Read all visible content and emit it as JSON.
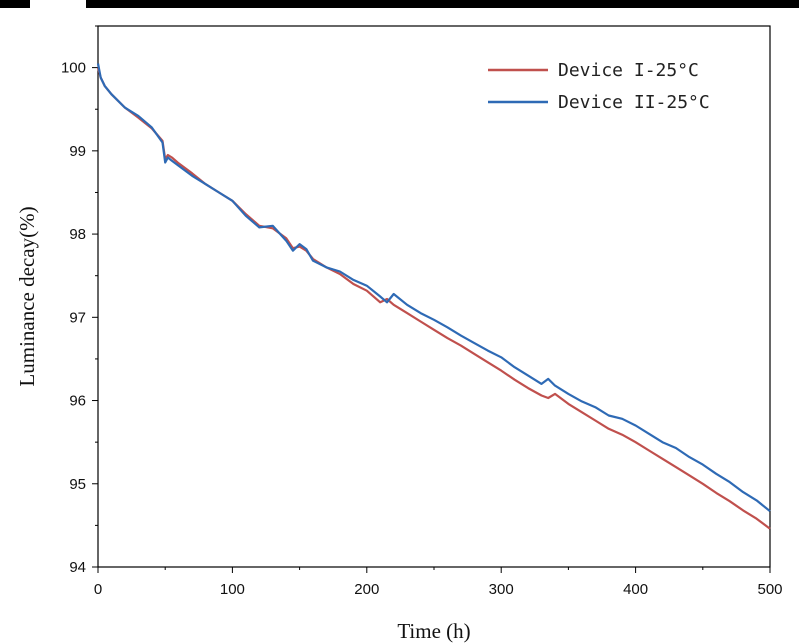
{
  "chart_data": {
    "type": "line",
    "title": "",
    "xlabel": "Time (h)",
    "ylabel": "Luminance decay(%)",
    "xlim": [
      0,
      500
    ],
    "ylim": [
      94,
      100.5
    ],
    "xticks": [
      0,
      100,
      200,
      300,
      400,
      500
    ],
    "yticks": [
      94,
      95,
      96,
      97,
      98,
      99,
      100
    ],
    "grid": false,
    "legend_position": "top-right",
    "series": [
      {
        "name": "Device I-25°C",
        "color": "#c0504d",
        "x": [
          0,
          2,
          5,
          10,
          20,
          30,
          40,
          48,
          50,
          52,
          55,
          60,
          70,
          80,
          90,
          100,
          110,
          120,
          130,
          140,
          145,
          150,
          155,
          160,
          170,
          180,
          190,
          200,
          210,
          215,
          220,
          230,
          240,
          250,
          260,
          270,
          280,
          290,
          300,
          310,
          320,
          330,
          335,
          340,
          350,
          360,
          370,
          380,
          390,
          400,
          410,
          420,
          430,
          440,
          450,
          460,
          470,
          480,
          490,
          500
        ],
        "y": [
          100.0,
          99.88,
          99.78,
          99.68,
          99.52,
          99.4,
          99.27,
          99.12,
          98.9,
          98.95,
          98.92,
          98.85,
          98.73,
          98.6,
          98.5,
          98.4,
          98.24,
          98.1,
          98.07,
          97.95,
          97.83,
          97.85,
          97.8,
          97.7,
          97.6,
          97.52,
          97.4,
          97.32,
          97.18,
          97.22,
          97.15,
          97.05,
          96.95,
          96.85,
          96.75,
          96.66,
          96.56,
          96.46,
          96.36,
          96.25,
          96.15,
          96.06,
          96.03,
          96.08,
          95.96,
          95.86,
          95.76,
          95.66,
          95.59,
          95.5,
          95.4,
          95.3,
          95.2,
          95.1,
          95.0,
          94.89,
          94.79,
          94.68,
          94.58,
          94.46
        ]
      },
      {
        "name": "Device II-25°C",
        "color": "#2e6ab5",
        "x": [
          0,
          2,
          5,
          10,
          20,
          30,
          40,
          48,
          50,
          52,
          55,
          60,
          70,
          80,
          90,
          100,
          110,
          120,
          130,
          140,
          145,
          150,
          155,
          160,
          170,
          180,
          190,
          200,
          210,
          215,
          220,
          230,
          240,
          250,
          260,
          270,
          280,
          290,
          300,
          310,
          320,
          330,
          335,
          340,
          350,
          360,
          370,
          380,
          390,
          400,
          410,
          420,
          430,
          440,
          450,
          460,
          470,
          480,
          490,
          500
        ],
        "y": [
          100.05,
          99.88,
          99.78,
          99.68,
          99.52,
          99.42,
          99.28,
          99.1,
          98.86,
          98.92,
          98.88,
          98.82,
          98.7,
          98.6,
          98.5,
          98.4,
          98.22,
          98.08,
          98.1,
          97.92,
          97.8,
          97.88,
          97.82,
          97.68,
          97.6,
          97.55,
          97.45,
          97.38,
          97.25,
          97.18,
          97.28,
          97.15,
          97.05,
          96.97,
          96.88,
          96.78,
          96.69,
          96.6,
          96.52,
          96.4,
          96.3,
          96.2,
          96.26,
          96.18,
          96.08,
          95.99,
          95.92,
          95.82,
          95.78,
          95.7,
          95.6,
          95.5,
          95.43,
          95.32,
          95.23,
          95.12,
          95.02,
          94.9,
          94.8,
          94.67
        ]
      }
    ]
  }
}
